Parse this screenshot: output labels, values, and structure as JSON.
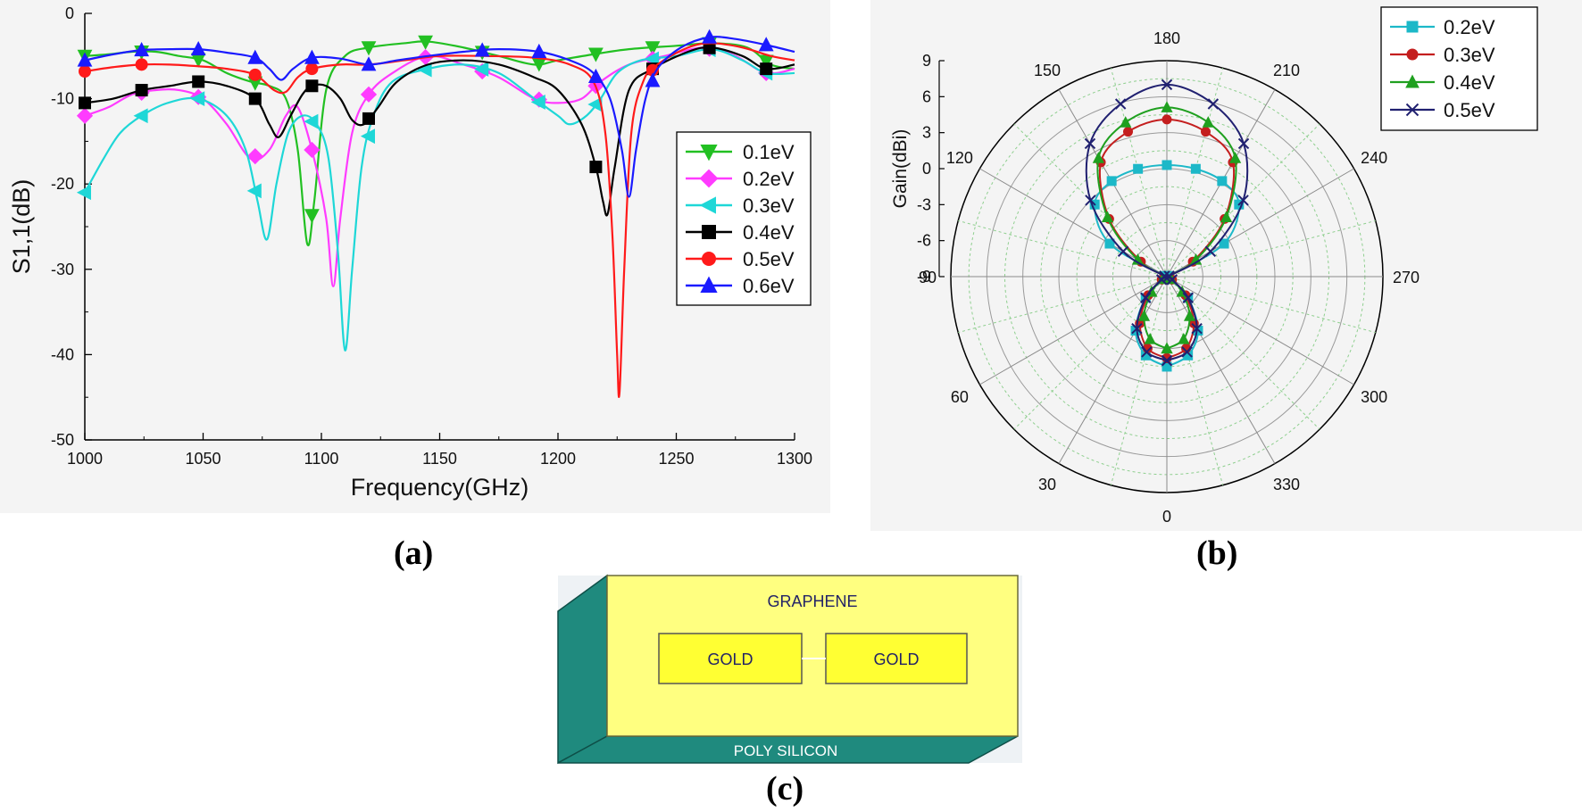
{
  "captions": {
    "a": "(a)",
    "b": "(b)",
    "c": "(c)"
  },
  "chart_data": [
    {
      "type": "line",
      "xlabel": "Frequency(GHz)",
      "ylabel": "S1,1(dB)",
      "xlim": [
        1000,
        1300
      ],
      "ylim": [
        -50,
        0
      ],
      "x_ticks": [
        1000,
        1050,
        1100,
        1150,
        1200,
        1250,
        1300
      ],
      "y_ticks": [
        0,
        -10,
        -20,
        -30,
        -40,
        -50
      ],
      "legend_position": "right",
      "series": [
        {
          "name": "0.1eV",
          "color": "#22c022",
          "marker": "triangle-down",
          "points": [
            [
              1000,
              -5
            ],
            [
              1010,
              -4.8
            ],
            [
              1020,
              -4.5
            ],
            [
              1030,
              -4.5
            ],
            [
              1040,
              -5
            ],
            [
              1050,
              -5.5
            ],
            [
              1060,
              -7
            ],
            [
              1070,
              -8
            ],
            [
              1078,
              -8.5
            ],
            [
              1085,
              -10
            ],
            [
              1090,
              -16
            ],
            [
              1094,
              -27
            ],
            [
              1097,
              -22
            ],
            [
              1102,
              -9
            ],
            [
              1110,
              -5
            ],
            [
              1120,
              -4
            ],
            [
              1135,
              -3.5
            ],
            [
              1145,
              -3.3
            ],
            [
              1160,
              -4
            ],
            [
              1175,
              -5
            ],
            [
              1190,
              -6
            ],
            [
              1200,
              -5.5
            ],
            [
              1215,
              -4.8
            ],
            [
              1230,
              -4.2
            ],
            [
              1250,
              -3.8
            ],
            [
              1265,
              -3.5
            ],
            [
              1280,
              -4
            ],
            [
              1290,
              -6
            ],
            [
              1300,
              -6.5
            ]
          ],
          "markers_x": [
            1000,
            1024,
            1048,
            1072,
            1096,
            1120,
            1144,
            1168,
            1192,
            1216,
            1240,
            1264,
            1288
          ]
        },
        {
          "name": "0.2eV",
          "color": "#ff3bff",
          "marker": "diamond",
          "points": [
            [
              1000,
              -12
            ],
            [
              1010,
              -11
            ],
            [
              1020,
              -9.5
            ],
            [
              1030,
              -9
            ],
            [
              1040,
              -9
            ],
            [
              1050,
              -10
            ],
            [
              1060,
              -13
            ],
            [
              1070,
              -17
            ],
            [
              1078,
              -16
            ],
            [
              1085,
              -12
            ],
            [
              1090,
              -11
            ],
            [
              1096,
              -16
            ],
            [
              1102,
              -24
            ],
            [
              1105,
              -32
            ],
            [
              1108,
              -24
            ],
            [
              1113,
              -14
            ],
            [
              1120,
              -9.5
            ],
            [
              1130,
              -7
            ],
            [
              1145,
              -5
            ],
            [
              1160,
              -6
            ],
            [
              1175,
              -7.5
            ],
            [
              1190,
              -10
            ],
            [
              1200,
              -10.5
            ],
            [
              1210,
              -10
            ],
            [
              1218,
              -8
            ],
            [
              1230,
              -6
            ],
            [
              1245,
              -5
            ],
            [
              1262,
              -4
            ],
            [
              1275,
              -5
            ],
            [
              1288,
              -7
            ],
            [
              1300,
              -6.5
            ]
          ],
          "markers_x": [
            1000,
            1024,
            1048,
            1072,
            1096,
            1120,
            1144,
            1168,
            1192,
            1216,
            1240,
            1264,
            1288
          ]
        },
        {
          "name": "0.3eV",
          "color": "#1ed7d7",
          "marker": "triangle-left",
          "points": [
            [
              1000,
              -21
            ],
            [
              1008,
              -17
            ],
            [
              1015,
              -14
            ],
            [
              1024,
              -12
            ],
            [
              1035,
              -10.5
            ],
            [
              1048,
              -10
            ],
            [
              1060,
              -12
            ],
            [
              1068,
              -16
            ],
            [
              1073,
              -22
            ],
            [
              1077,
              -26.5
            ],
            [
              1081,
              -20
            ],
            [
              1086,
              -14
            ],
            [
              1092,
              -12
            ],
            [
              1098,
              -13
            ],
            [
              1103,
              -17
            ],
            [
              1107,
              -28
            ],
            [
              1110,
              -39.5
            ],
            [
              1113,
              -30
            ],
            [
              1117,
              -18
            ],
            [
              1122,
              -12
            ],
            [
              1130,
              -8
            ],
            [
              1145,
              -6.5
            ],
            [
              1160,
              -6
            ],
            [
              1175,
              -7
            ],
            [
              1190,
              -10
            ],
            [
              1200,
              -12
            ],
            [
              1205,
              -13
            ],
            [
              1212,
              -12
            ],
            [
              1218,
              -10
            ],
            [
              1225,
              -7
            ],
            [
              1235,
              -5.5
            ],
            [
              1250,
              -5
            ],
            [
              1265,
              -4.2
            ],
            [
              1278,
              -5.5
            ],
            [
              1288,
              -7
            ],
            [
              1300,
              -7
            ]
          ],
          "markers_x": [
            1000,
            1024,
            1048,
            1072,
            1096,
            1120,
            1144,
            1168,
            1192,
            1216,
            1240,
            1264,
            1288
          ]
        },
        {
          "name": "0.4eV",
          "color": "#000000",
          "marker": "square",
          "points": [
            [
              1000,
              -10.5
            ],
            [
              1012,
              -10
            ],
            [
              1024,
              -9
            ],
            [
              1036,
              -8.5
            ],
            [
              1048,
              -8
            ],
            [
              1060,
              -8.5
            ],
            [
              1072,
              -10
            ],
            [
              1078,
              -13
            ],
            [
              1082,
              -14.5
            ],
            [
              1087,
              -12
            ],
            [
              1092,
              -9.5
            ],
            [
              1096,
              -8.5
            ],
            [
              1102,
              -8.5
            ],
            [
              1108,
              -10
            ],
            [
              1113,
              -12.5
            ],
            [
              1118,
              -13
            ],
            [
              1124,
              -11
            ],
            [
              1132,
              -8
            ],
            [
              1145,
              -6
            ],
            [
              1160,
              -5.5
            ],
            [
              1175,
              -6
            ],
            [
              1190,
              -7.5
            ],
            [
              1200,
              -9
            ],
            [
              1210,
              -13
            ],
            [
              1216,
              -18
            ],
            [
              1219,
              -22
            ],
            [
              1221,
              -23.5
            ],
            [
              1224,
              -18
            ],
            [
              1230,
              -9
            ],
            [
              1240,
              -6.5
            ],
            [
              1255,
              -4.5
            ],
            [
              1265,
              -4
            ],
            [
              1278,
              -5
            ],
            [
              1288,
              -6.5
            ],
            [
              1300,
              -6
            ]
          ],
          "markers_x": [
            1000,
            1024,
            1048,
            1072,
            1096,
            1120,
            1216,
            1240,
            1264,
            1288
          ]
        },
        {
          "name": "0.5eV",
          "color": "#ff1a1a",
          "marker": "circle",
          "points": [
            [
              1000,
              -6.8
            ],
            [
              1012,
              -6.3
            ],
            [
              1024,
              -6
            ],
            [
              1036,
              -6
            ],
            [
              1048,
              -6.2
            ],
            [
              1060,
              -6.5
            ],
            [
              1072,
              -7.2
            ],
            [
              1080,
              -9
            ],
            [
              1085,
              -9.2
            ],
            [
              1090,
              -7.5
            ],
            [
              1096,
              -6.5
            ],
            [
              1108,
              -6
            ],
            [
              1120,
              -6
            ],
            [
              1135,
              -5.5
            ],
            [
              1150,
              -5
            ],
            [
              1170,
              -5
            ],
            [
              1190,
              -5.2
            ],
            [
              1205,
              -6
            ],
            [
              1215,
              -8
            ],
            [
              1220,
              -14
            ],
            [
              1223,
              -26
            ],
            [
              1225,
              -40
            ],
            [
              1226,
              -44.5
            ],
            [
              1228,
              -30
            ],
            [
              1231,
              -14
            ],
            [
              1236,
              -8
            ],
            [
              1242,
              -6
            ],
            [
              1255,
              -4
            ],
            [
              1265,
              -3.5
            ],
            [
              1278,
              -4
            ],
            [
              1290,
              -5
            ],
            [
              1300,
              -5.5
            ]
          ],
          "markers_x": [
            1000,
            1024,
            1072,
            1096,
            1240
          ]
        },
        {
          "name": "0.6eV",
          "color": "#1a1aff",
          "marker": "triangle-up",
          "points": [
            [
              1000,
              -5.5
            ],
            [
              1012,
              -4.8
            ],
            [
              1024,
              -4.3
            ],
            [
              1036,
              -4.2
            ],
            [
              1048,
              -4.2
            ],
            [
              1060,
              -4.6
            ],
            [
              1072,
              -5.2
            ],
            [
              1078,
              -6.5
            ],
            [
              1083,
              -7.8
            ],
            [
              1088,
              -6.5
            ],
            [
              1096,
              -5.2
            ],
            [
              1108,
              -5.3
            ],
            [
              1120,
              -6
            ],
            [
              1132,
              -5.5
            ],
            [
              1145,
              -5
            ],
            [
              1160,
              -4.5
            ],
            [
              1175,
              -4.2
            ],
            [
              1192,
              -4.5
            ],
            [
              1205,
              -5.5
            ],
            [
              1215,
              -7
            ],
            [
              1222,
              -10
            ],
            [
              1227,
              -16
            ],
            [
              1230,
              -21.5
            ],
            [
              1233,
              -16
            ],
            [
              1237,
              -10
            ],
            [
              1242,
              -6.5
            ],
            [
              1252,
              -4
            ],
            [
              1264,
              -2.8
            ],
            [
              1275,
              -3
            ],
            [
              1288,
              -3.7
            ],
            [
              1300,
              -4.5
            ]
          ],
          "markers_x": [
            1000,
            1024,
            1048,
            1072,
            1096,
            1120,
            1168,
            1192,
            1216,
            1240,
            1264,
            1288
          ]
        }
      ]
    },
    {
      "type": "polar",
      "r_label": "Gain(dBi)",
      "r_ticks": [
        9,
        6,
        3,
        0,
        -3,
        -6,
        -9
      ],
      "r_range": [
        -9,
        9
      ],
      "angle_labels": [
        "0",
        "30",
        "60",
        "90",
        "120",
        "150",
        "180",
        "210",
        "240",
        "270",
        "300",
        "330"
      ],
      "legend_position": "top-right",
      "series": [
        {
          "name": "0.2eV",
          "color": "#1cb8c8",
          "marker": "square",
          "angles": [
            0,
            15,
            30,
            45,
            60,
            75,
            90,
            105,
            120,
            135,
            150,
            165,
            180
          ],
          "gain": [
            -1.5,
            -2.2,
            -3.8,
            -6.5,
            -8.8,
            -9,
            -9,
            -8.8,
            -3.5,
            -0.5,
            0.2,
            0.3,
            0.3
          ]
        },
        {
          "name": "0.3eV",
          "color": "#c41e1e",
          "marker": "circle",
          "angles": [
            0,
            15,
            30,
            45,
            60,
            75,
            90,
            105,
            120,
            135,
            150,
            165,
            180
          ],
          "gain": [
            -2.2,
            -2.8,
            -4.5,
            -6.8,
            -8.5,
            -9,
            -9,
            -9,
            -6.5,
            -2.2,
            2.0,
            3.5,
            4.1
          ]
        },
        {
          "name": "0.4eV",
          "color": "#1fa01f",
          "marker": "triangle-up",
          "angles": [
            0,
            15,
            30,
            45,
            60,
            75,
            90,
            105,
            120,
            135,
            150,
            165,
            180
          ],
          "gain": [
            -3.0,
            -3.6,
            -5.2,
            -7.2,
            -8.6,
            -9,
            -9,
            -9,
            -6.2,
            -2.0,
            2.4,
            4.3,
            5.1
          ]
        },
        {
          "name": "0.5eV",
          "color": "#202070",
          "marker": "cross",
          "angles": [
            0,
            15,
            30,
            45,
            60,
            75,
            90,
            105,
            120,
            135,
            150,
            165,
            180
          ],
          "gain": [
            -2.0,
            -2.5,
            -4.0,
            -6.5,
            -8.5,
            -9,
            -9,
            -8.8,
            -4.8,
            0,
            3.8,
            5.9,
            7.0
          ]
        }
      ]
    }
  ],
  "diagram": {
    "top_label": "GRAPHENE",
    "gold_left": "GOLD",
    "gold_right": "GOLD",
    "base_label": "POLY SILICON"
  }
}
